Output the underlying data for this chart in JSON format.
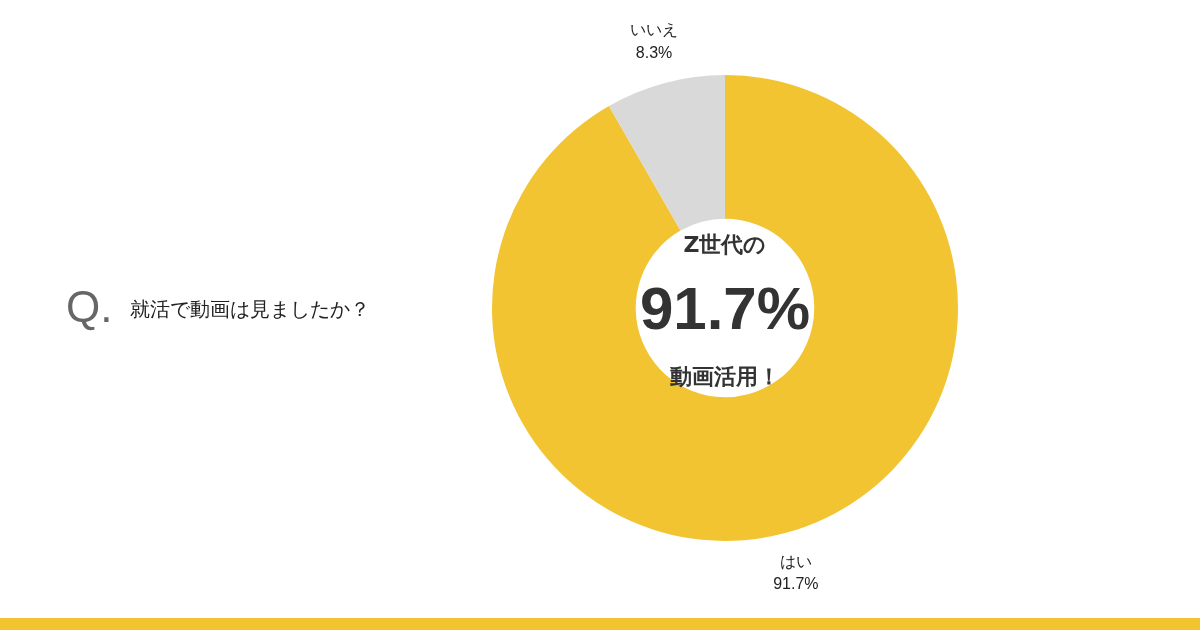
{
  "chart_data": {
    "type": "donut",
    "title": "就活で動画は見ましたか？",
    "categories": [
      "はい",
      "いいえ"
    ],
    "values": [
      91.7,
      8.3
    ],
    "colors": [
      "#f2c432",
      "#d9d9d9"
    ],
    "value_labels": [
      "91.7%",
      "8.3%"
    ],
    "annotations": [
      "Q.",
      "Z世代の",
      "91.7%",
      "動画活用！"
    ],
    "legend": false
  }
}
